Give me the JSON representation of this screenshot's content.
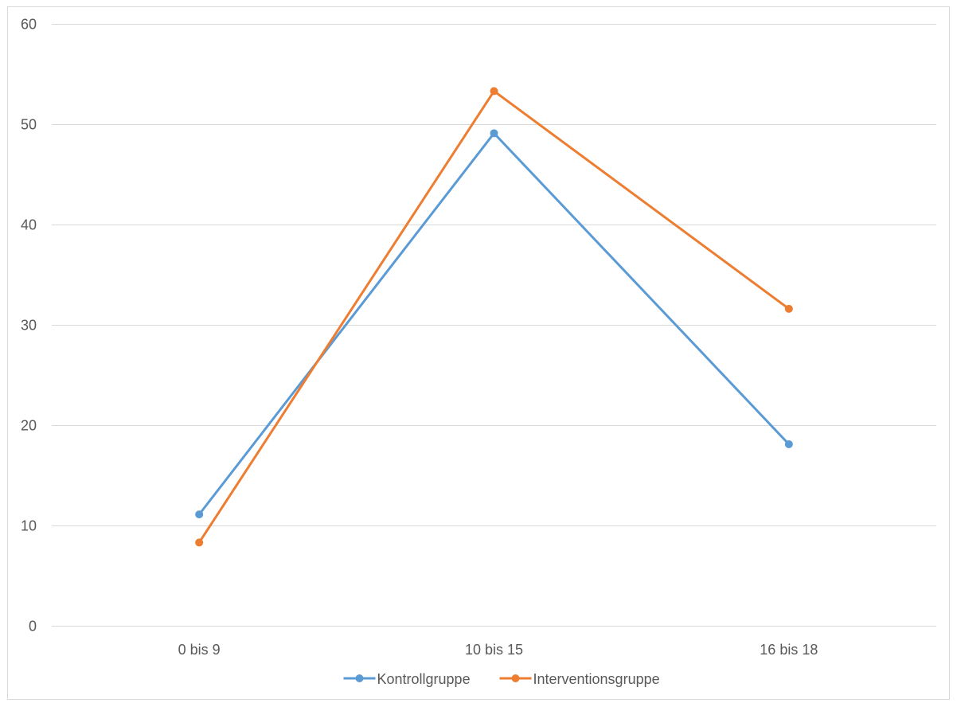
{
  "chart_data": {
    "type": "line",
    "title": "",
    "xlabel": "",
    "ylabel": "",
    "categories": [
      "0 bis 9",
      "10 bis 15",
      "16 bis 18"
    ],
    "series": [
      {
        "name": "Kontrollgruppe",
        "values": [
          11.1,
          49.1,
          18.1
        ],
        "color": "#5b9bd5"
      },
      {
        "name": "Interventionsgruppe",
        "values": [
          8.3,
          53.3,
          31.6
        ],
        "color": "#ed7d31"
      }
    ],
    "ylim": [
      0,
      60
    ],
    "yticks": [
      "0",
      "10",
      "20",
      "30",
      "40",
      "50",
      "60"
    ],
    "grid": true,
    "legend": "bottom",
    "colors": {
      "grid": "#d9d9d9",
      "axis": "#d9d9d9",
      "text": "#595959",
      "frame": "#d9d9d9"
    }
  }
}
